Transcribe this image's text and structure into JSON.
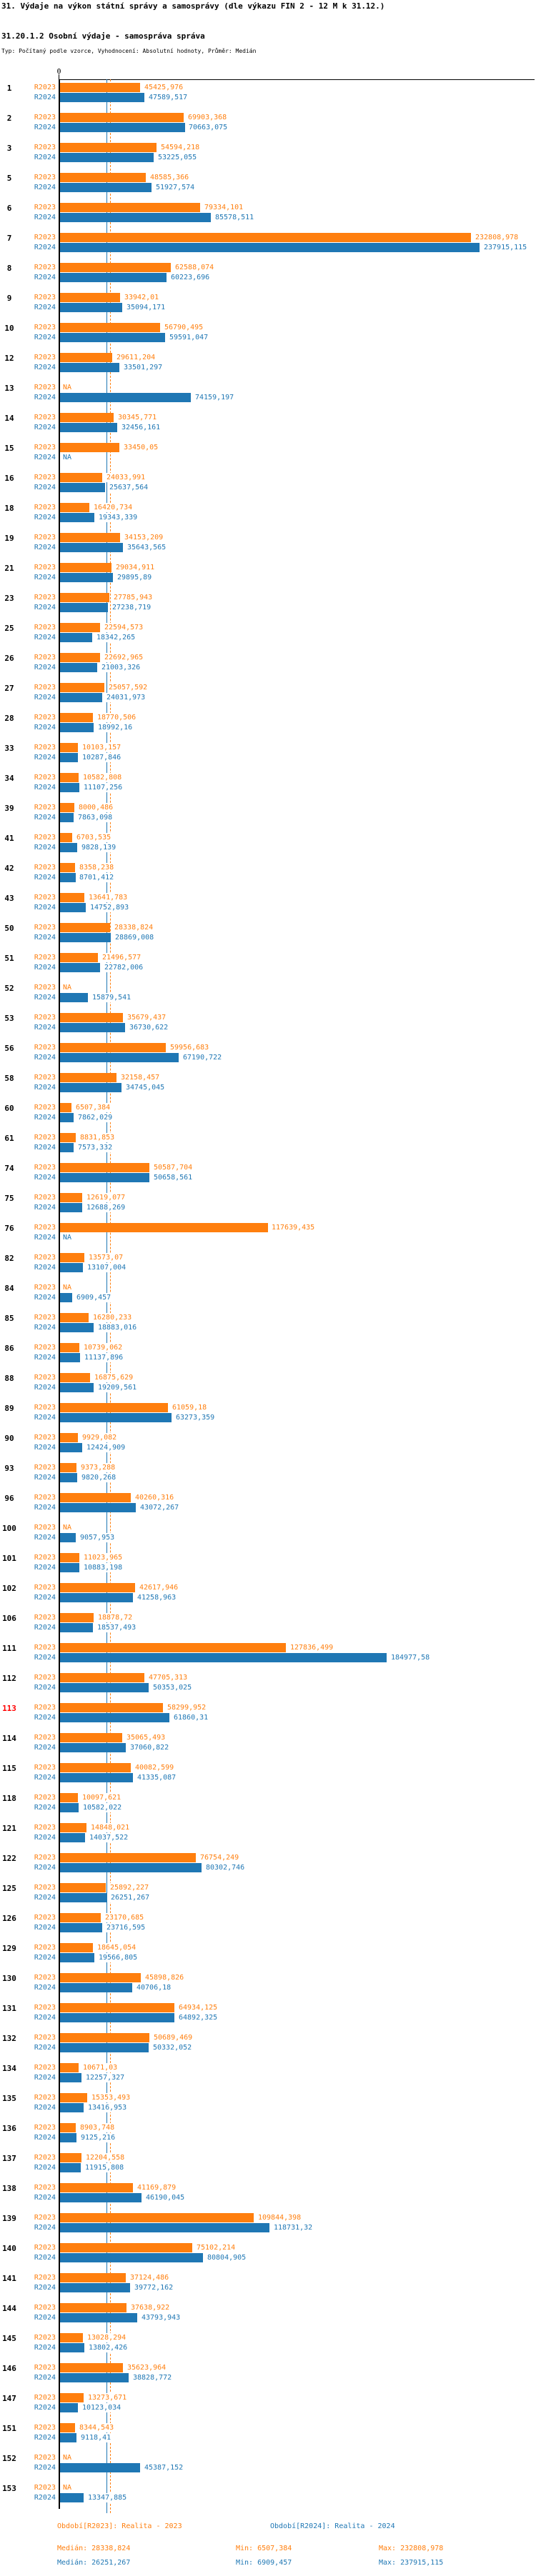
{
  "title": "31. Výdaje na výkon státní správy a samosprávy (dle výkazu FIN 2 - 12 M k 31.12.)",
  "subtitle": "31.20.1.2 Osobní výdaje - samospráva správa",
  "meta": "Typ: Počítaný podle vzorce, Vyhodnocení: Absolutní hodnoty, Průměr: Medián",
  "colors": {
    "r2023": "#ff7f0e",
    "r2024": "#1f77b4",
    "highlight": "#ff0000",
    "axis": "#000000"
  },
  "legend": {
    "r2023": "Období[R2023]: Realita - 2023",
    "r2024": "Období[R2024]: Realita - 2024"
  },
  "stats": {
    "r2023": {
      "median": "Medián: 28338,824",
      "min": "Min: 6507,384",
      "max": "Max: 232808,978"
    },
    "r2024": {
      "median": "Medián: 26251,267",
      "min": "Min: 6909,457",
      "max": "Max: 237915,115"
    }
  },
  "chart_data": {
    "type": "bar",
    "orientation": "horizontal",
    "series_labels": [
      "R2023",
      "R2024"
    ],
    "axis_zero_label": "0",
    "na_label": "NA",
    "xlim": [
      0,
      268000
    ],
    "median_r2023": 28338.824,
    "median_r2024": 26251.267,
    "groups": [
      {
        "id": "1",
        "r2023": "45425,976",
        "r2024": "47589,517"
      },
      {
        "id": "2",
        "r2023": "69903,368",
        "r2024": "70663,075"
      },
      {
        "id": "3",
        "r2023": "54594,218",
        "r2024": "53225,055"
      },
      {
        "id": "5",
        "r2023": "48585,366",
        "r2024": "51927,574"
      },
      {
        "id": "6",
        "r2023": "79334,101",
        "r2024": "85578,511"
      },
      {
        "id": "7",
        "r2023": "232808,978",
        "r2024": "237915,115"
      },
      {
        "id": "8",
        "r2023": "62588,074",
        "r2024": "60223,696"
      },
      {
        "id": "9",
        "r2023": "33942,01",
        "r2024": "35094,171"
      },
      {
        "id": "10",
        "r2023": "56790,495",
        "r2024": "59591,047"
      },
      {
        "id": "12",
        "r2023": "29611,204",
        "r2024": "33501,297"
      },
      {
        "id": "13",
        "r2023": null,
        "r2024": "74159,197"
      },
      {
        "id": "14",
        "r2023": "30345,771",
        "r2024": "32456,161"
      },
      {
        "id": "15",
        "r2023": "33450,05",
        "r2024": null
      },
      {
        "id": "16",
        "r2023": "24033,991",
        "r2024": "25637,564"
      },
      {
        "id": "18",
        "r2023": "16420,734",
        "r2024": "19343,339"
      },
      {
        "id": "19",
        "r2023": "34153,209",
        "r2024": "35643,565"
      },
      {
        "id": "21",
        "r2023": "29034,911",
        "r2024": "29895,89"
      },
      {
        "id": "23",
        "r2023": "27785,943",
        "r2024": "27238,719"
      },
      {
        "id": "25",
        "r2023": "22594,573",
        "r2024": "18342,265"
      },
      {
        "id": "26",
        "r2023": "22692,965",
        "r2024": "21003,326"
      },
      {
        "id": "27",
        "r2023": "25057,592",
        "r2024": "24031,973"
      },
      {
        "id": "28",
        "r2023": "18770,506",
        "r2024": "18992,16"
      },
      {
        "id": "33",
        "r2023": "10103,157",
        "r2024": "10287,846"
      },
      {
        "id": "34",
        "r2023": "10582,808",
        "r2024": "11107,256"
      },
      {
        "id": "39",
        "r2023": "8000,486",
        "r2024": "7863,098"
      },
      {
        "id": "41",
        "r2023": "6703,535",
        "r2024": "9828,139"
      },
      {
        "id": "42",
        "r2023": "8358,238",
        "r2024": "8701,412"
      },
      {
        "id": "43",
        "r2023": "13641,783",
        "r2024": "14752,893"
      },
      {
        "id": "50",
        "r2023": "28338,824",
        "r2024": "28869,008"
      },
      {
        "id": "51",
        "r2023": "21496,577",
        "r2024": "22782,006"
      },
      {
        "id": "52",
        "r2023": null,
        "r2024": "15879,541"
      },
      {
        "id": "53",
        "r2023": "35679,437",
        "r2024": "36730,622"
      },
      {
        "id": "56",
        "r2023": "59956,683",
        "r2024": "67190,722"
      },
      {
        "id": "58",
        "r2023": "32158,457",
        "r2024": "34745,045"
      },
      {
        "id": "60",
        "r2023": "6507,384",
        "r2024": "7862,029"
      },
      {
        "id": "61",
        "r2023": "8831,853",
        "r2024": "7573,332"
      },
      {
        "id": "74",
        "r2023": "50587,704",
        "r2024": "50658,561"
      },
      {
        "id": "75",
        "r2023": "12619,077",
        "r2024": "12688,269"
      },
      {
        "id": "76",
        "r2023": "117639,435",
        "r2024": null
      },
      {
        "id": "82",
        "r2023": "13573,07",
        "r2024": "13107,004"
      },
      {
        "id": "84",
        "r2023": null,
        "r2024": "6909,457"
      },
      {
        "id": "85",
        "r2023": "16280,233",
        "r2024": "18883,016"
      },
      {
        "id": "86",
        "r2023": "10739,062",
        "r2024": "11137,896"
      },
      {
        "id": "88",
        "r2023": "16875,629",
        "r2024": "19209,561"
      },
      {
        "id": "89",
        "r2023": "61059,18",
        "r2024": "63273,359"
      },
      {
        "id": "90",
        "r2023": "9929,082",
        "r2024": "12424,909"
      },
      {
        "id": "93",
        "r2023": "9373,288",
        "r2024": "9820,268"
      },
      {
        "id": "96",
        "r2023": "40260,316",
        "r2024": "43072,267"
      },
      {
        "id": "100",
        "r2023": null,
        "r2024": "9057,953"
      },
      {
        "id": "101",
        "r2023": "11023,965",
        "r2024": "10883,198"
      },
      {
        "id": "102",
        "r2023": "42617,946",
        "r2024": "41258,963"
      },
      {
        "id": "106",
        "r2023": "18878,72",
        "r2024": "18537,493"
      },
      {
        "id": "111",
        "r2023": "127836,499",
        "r2024": "184977,58"
      },
      {
        "id": "112",
        "r2023": "47705,313",
        "r2024": "50353,025"
      },
      {
        "id": "113",
        "r2023": "58299,952",
        "r2024": "61860,31",
        "highlight": true
      },
      {
        "id": "114",
        "r2023": "35065,493",
        "r2024": "37060,822"
      },
      {
        "id": "115",
        "r2023": "40082,599",
        "r2024": "41335,087"
      },
      {
        "id": "118",
        "r2023": "10097,621",
        "r2024": "10582,022"
      },
      {
        "id": "121",
        "r2023": "14848,021",
        "r2024": "14037,522"
      },
      {
        "id": "122",
        "r2023": "76754,249",
        "r2024": "80302,746"
      },
      {
        "id": "125",
        "r2023": "25892,227",
        "r2024": "26251,267"
      },
      {
        "id": "126",
        "r2023": "23170,685",
        "r2024": "23716,595"
      },
      {
        "id": "129",
        "r2023": "18645,054",
        "r2024": "19566,805"
      },
      {
        "id": "130",
        "r2023": "45898,826",
        "r2024": "40706,18"
      },
      {
        "id": "131",
        "r2023": "64934,125",
        "r2024": "64892,325"
      },
      {
        "id": "132",
        "r2023": "50689,469",
        "r2024": "50332,052"
      },
      {
        "id": "134",
        "r2023": "10671,03",
        "r2024": "12257,327"
      },
      {
        "id": "135",
        "r2023": "15353,493",
        "r2024": "13416,953"
      },
      {
        "id": "136",
        "r2023": "8903,748",
        "r2024": "9125,216"
      },
      {
        "id": "137",
        "r2023": "12204,558",
        "r2024": "11915,808"
      },
      {
        "id": "138",
        "r2023": "41169,879",
        "r2024": "46190,045"
      },
      {
        "id": "139",
        "r2023": "109844,398",
        "r2024": "118731,32"
      },
      {
        "id": "140",
        "r2023": "75102,214",
        "r2024": "80804,905"
      },
      {
        "id": "141",
        "r2023": "37124,486",
        "r2024": "39772,162"
      },
      {
        "id": "144",
        "r2023": "37638,922",
        "r2024": "43793,943"
      },
      {
        "id": "145",
        "r2023": "13028,294",
        "r2024": "13802,426"
      },
      {
        "id": "146",
        "r2023": "35623,964",
        "r2024": "38828,772"
      },
      {
        "id": "147",
        "r2023": "13273,671",
        "r2024": "10123,034"
      },
      {
        "id": "151",
        "r2023": "8344,543",
        "r2024": "9118,41"
      },
      {
        "id": "152",
        "r2023": null,
        "r2024": "45387,152"
      },
      {
        "id": "153",
        "r2023": null,
        "r2024": "13347,885"
      }
    ]
  }
}
